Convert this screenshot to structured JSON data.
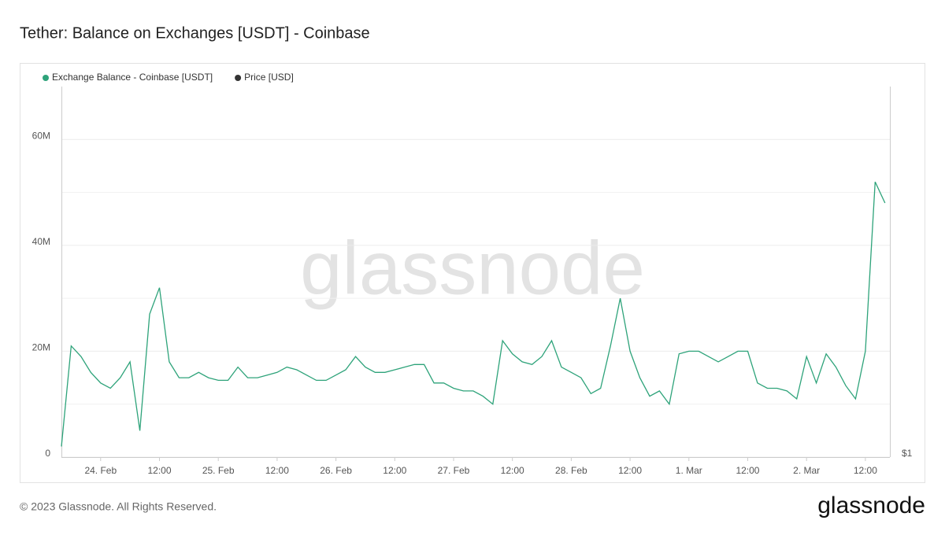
{
  "chart_data": {
    "type": "line",
    "title": "Tether: Balance on Exchanges [USDT] - Coinbase",
    "watermark": "glassnode",
    "footer": "© 2023 Glassnode. All Rights Reserved.",
    "logo": "glassnode",
    "x": [
      "02-23 16:00",
      "02-23 18:00",
      "02-23 20:00",
      "02-23 22:00",
      "02-24 00:00",
      "02-24 02:00",
      "02-24 04:00",
      "02-24 06:00",
      "02-24 08:00",
      "02-24 10:00",
      "02-24 12:00",
      "02-24 14:00",
      "02-24 16:00",
      "02-24 18:00",
      "02-24 20:00",
      "02-24 22:00",
      "02-25 00:00",
      "02-25 02:00",
      "02-25 04:00",
      "02-25 06:00",
      "02-25 08:00",
      "02-25 10:00",
      "02-25 12:00",
      "02-25 14:00",
      "02-25 16:00",
      "02-25 18:00",
      "02-25 20:00",
      "02-25 22:00",
      "02-26 00:00",
      "02-26 02:00",
      "02-26 04:00",
      "02-26 06:00",
      "02-26 08:00",
      "02-26 10:00",
      "02-26 12:00",
      "02-26 14:00",
      "02-26 16:00",
      "02-26 18:00",
      "02-26 20:00",
      "02-26 22:00",
      "02-27 00:00",
      "02-27 02:00",
      "02-27 04:00",
      "02-27 06:00",
      "02-27 08:00",
      "02-27 10:00",
      "02-27 12:00",
      "02-27 14:00",
      "02-27 16:00",
      "02-27 18:00",
      "02-27 20:00",
      "02-27 22:00",
      "02-28 00:00",
      "02-28 02:00",
      "02-28 04:00",
      "02-28 06:00",
      "02-28 08:00",
      "02-28 10:00",
      "02-28 12:00",
      "02-28 14:00",
      "02-28 16:00",
      "02-28 18:00",
      "02-28 20:00",
      "02-28 22:00",
      "03-01 00:00",
      "03-01 02:00",
      "03-01 04:00",
      "03-01 06:00",
      "03-01 08:00",
      "03-01 10:00",
      "03-01 12:00",
      "03-01 14:00",
      "03-01 16:00",
      "03-01 18:00",
      "03-01 20:00",
      "03-01 22:00",
      "03-02 00:00",
      "03-02 02:00",
      "03-02 04:00",
      "03-02 06:00",
      "03-02 08:00",
      "03-02 10:00",
      "03-02 12:00",
      "03-02 14:00",
      "03-02 16:00"
    ],
    "series": [
      {
        "name": "Exchange Balance - Coinbase [USDT]",
        "color": "#2ea37a",
        "values": [
          2000000.0,
          21000000.0,
          19000000.0,
          16000000.0,
          14000000.0,
          13000000.0,
          15000000.0,
          18000000.0,
          5000000.0,
          27000000.0,
          32000000.0,
          18000000.0,
          15000000.0,
          15000000.0,
          16000000.0,
          15000000.0,
          14500000.0,
          14500000.0,
          17000000.0,
          15000000.0,
          15000000.0,
          15500000.0,
          16000000.0,
          17000000.0,
          16500000.0,
          15500000.0,
          14500000.0,
          14500000.0,
          15500000.0,
          16500000.0,
          19000000.0,
          17000000.0,
          16000000.0,
          16000000.0,
          16500000.0,
          17000000.0,
          17500000.0,
          17500000.0,
          14000000.0,
          14000000.0,
          13000000.0,
          12500000.0,
          12500000.0,
          11500000.0,
          10000000.0,
          22000000.0,
          19500000.0,
          18000000.0,
          17500000.0,
          19000000.0,
          22000000.0,
          17000000.0,
          16000000.0,
          15000000.0,
          12000000.0,
          13000000.0,
          21000000.0,
          30000000.0,
          20000000.0,
          15000000.0,
          11500000.0,
          12500000.0,
          10000000.0,
          19500000.0,
          20000000.0,
          20000000.0,
          19000000.0,
          18000000.0,
          19000000.0,
          20000000.0,
          20000000.0,
          14000000.0,
          13000000.0,
          13000000.0,
          12500000.0,
          11000000.0,
          19000000.0,
          14000000.0,
          19500000.0,
          17000000.0,
          13500000.0,
          11000000.0,
          20000000.0,
          52000000.0,
          48000000.0
        ]
      },
      {
        "name": "Price [USD]",
        "color": "#333333",
        "axis": "y2"
      }
    ],
    "xlim": [
      "02-23 16:00",
      "03-02 17:00"
    ],
    "xticks": [
      {
        "value": "02-24 00:00",
        "label": "24. Feb"
      },
      {
        "value": "02-24 12:00",
        "label": "12:00"
      },
      {
        "value": "02-25 00:00",
        "label": "25. Feb"
      },
      {
        "value": "02-25 12:00",
        "label": "12:00"
      },
      {
        "value": "02-26 00:00",
        "label": "26. Feb"
      },
      {
        "value": "02-26 12:00",
        "label": "12:00"
      },
      {
        "value": "02-27 00:00",
        "label": "27. Feb"
      },
      {
        "value": "02-27 12:00",
        "label": "12:00"
      },
      {
        "value": "02-28 00:00",
        "label": "28. Feb"
      },
      {
        "value": "02-28 12:00",
        "label": "12:00"
      },
      {
        "value": "03-01 00:00",
        "label": "1. Mar"
      },
      {
        "value": "03-01 12:00",
        "label": "12:00"
      },
      {
        "value": "03-02 00:00",
        "label": "2. Mar"
      },
      {
        "value": "03-02 12:00",
        "label": "12:00"
      }
    ],
    "ylim": [
      0,
      70000000
    ],
    "yticks": [
      0,
      {
        "value": 20000000,
        "label": "20M"
      },
      {
        "value": 40000000,
        "label": "40M"
      },
      {
        "value": 60000000,
        "label": "60M"
      }
    ],
    "y2ticks": [
      {
        "value": 1,
        "label": "$1"
      }
    ],
    "grid": true
  }
}
